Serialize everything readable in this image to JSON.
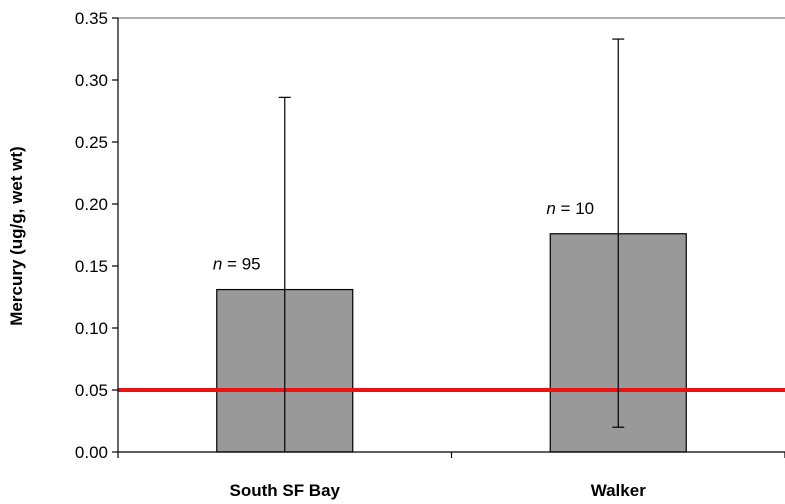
{
  "chart_data": {
    "type": "bar",
    "title": "",
    "xlabel": "",
    "ylabel": "Mercury (ug/g, wet wt)",
    "ylim": [
      0,
      0.35
    ],
    "yticks": [
      "0.00",
      "0.05",
      "0.10",
      "0.15",
      "0.20",
      "0.25",
      "0.30",
      "0.35"
    ],
    "categories": [
      "South SF Bay",
      "Walker"
    ],
    "values": [
      0.131,
      0.176
    ],
    "error_upper": [
      0.286,
      0.333
    ],
    "error_lower": [
      0.0,
      0.02
    ],
    "bar_color": "#999999",
    "annotations": [
      {
        "var": "n",
        "text": " = 95"
      },
      {
        "var": "n",
        "text": " = 10"
      }
    ],
    "reference_line": {
      "value": 0.05,
      "color": "#ee1111"
    },
    "grid": false,
    "legend": "none"
  }
}
